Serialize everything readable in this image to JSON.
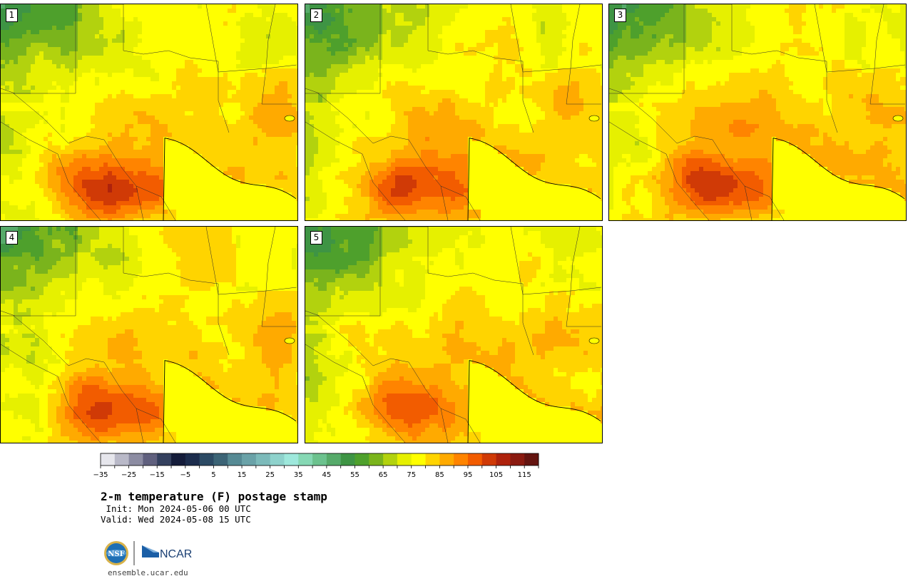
{
  "panels": [
    {
      "label": "1",
      "heat": 1.0
    },
    {
      "label": "2",
      "heat": 1.05
    },
    {
      "label": "3",
      "heat": 1.15
    },
    {
      "label": "4",
      "heat": 0.95
    },
    {
      "label": "5",
      "heat": 0.85
    }
  ],
  "colorbar": {
    "colors": [
      "#e6e6ec",
      "#b9b9c8",
      "#8c8ca2",
      "#60607e",
      "#34405e",
      "#141c3a",
      "#1c2c4c",
      "#2c4a64",
      "#3c6476",
      "#568a94",
      "#6aa2a8",
      "#7cbaba",
      "#8ed2cc",
      "#9ee8dc",
      "#86d8b4",
      "#6cc28e",
      "#56aa6a",
      "#3e9444",
      "#4ea02c",
      "#7ab41c",
      "#b2d20e",
      "#e6f000",
      "#ffff00",
      "#ffd400",
      "#ffaa00",
      "#ff8400",
      "#f25c00",
      "#d03a06",
      "#ae220c",
      "#8a1a10",
      "#641410"
    ],
    "tick_labels": [
      "−35",
      "−25",
      "−15",
      "−5",
      "5",
      "15",
      "25",
      "35",
      "45",
      "55",
      "65",
      "75",
      "85",
      "95",
      "105",
      "115"
    ],
    "min": -35,
    "max": 120,
    "step": 5
  },
  "title": "2-m temperature (F) postage stamp",
  "init": " Init: Mon 2024-05-06 00 UTC",
  "valid": "Valid: Wed 2024-05-08 15 UTC",
  "logos": {
    "nsf": "NSF",
    "ncar": "NCAR"
  },
  "url": "ensemble.ucar.edu"
}
